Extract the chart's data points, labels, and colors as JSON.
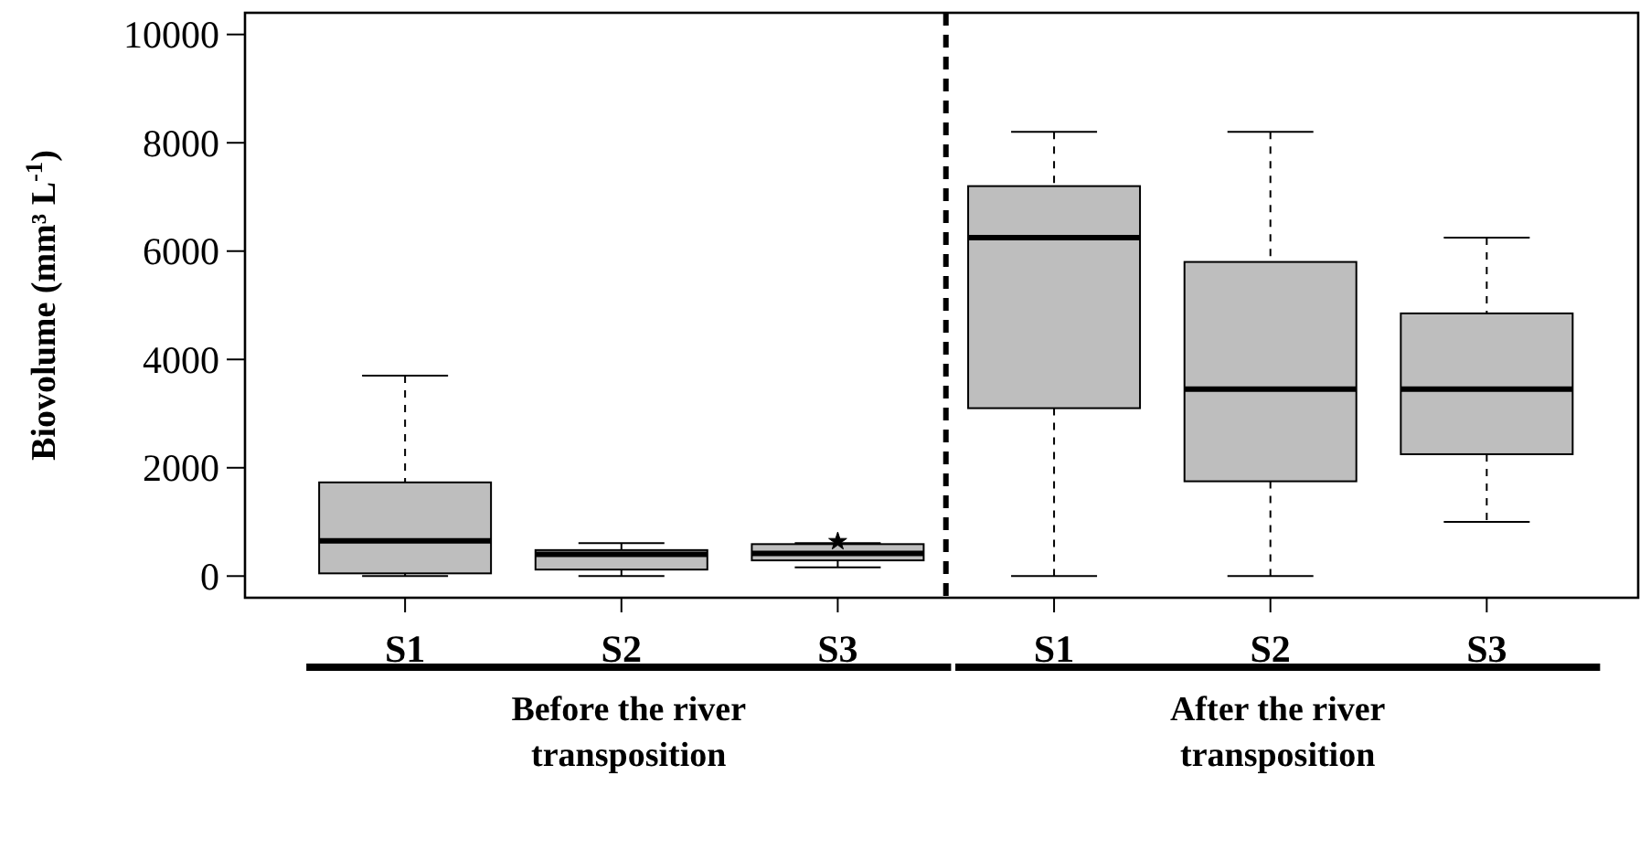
{
  "chart_data": {
    "type": "box",
    "ylabel": "Biovolume (mm³ L$^{-1}$)",
    "categories": [
      "S1",
      "S2",
      "S3",
      "S1",
      "S2",
      "S3"
    ],
    "color": "#bebebe",
    "boxes": [
      {
        "low": 0,
        "q1": 50,
        "median": 650,
        "q3": 1730,
        "high": 3700
      },
      {
        "low": 0,
        "q1": 120,
        "median": 400,
        "q3": 480,
        "high": 610
      },
      {
        "low": 160,
        "q1": 290,
        "median": 420,
        "q3": 590,
        "high": 610,
        "outliers": [
          640
        ]
      },
      {
        "low": 0,
        "q1": 3100,
        "median": 6250,
        "q3": 7200,
        "high": 8200
      },
      {
        "low": 0,
        "q1": 1750,
        "median": 3450,
        "q3": 5800,
        "high": 8200
      },
      {
        "low": 1000,
        "q1": 2250,
        "median": 3450,
        "q3": 4850,
        "high": 6250
      }
    ],
    "ylim": [
      -400,
      10400
    ],
    "yticks": [
      0,
      2000,
      4000,
      6000,
      8000,
      10000
    ],
    "annotations": [
      "Before the river transposition",
      "After the river transposition"
    ],
    "marker": "star",
    "grid": false
  }
}
